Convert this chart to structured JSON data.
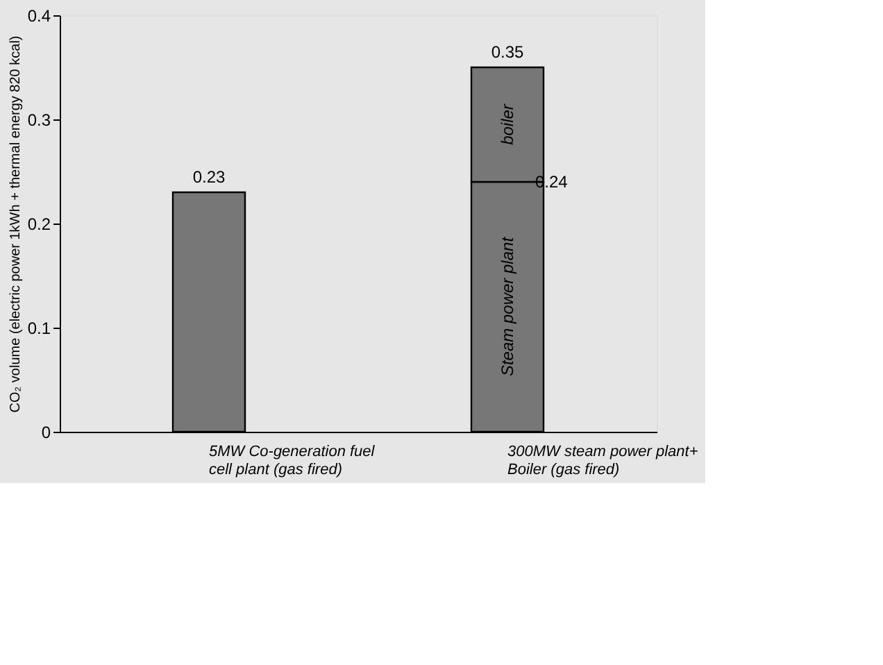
{
  "chart_data": {
    "type": "bar",
    "stacked": true,
    "ylabel": "CO₂ volume (electric power 1kWh + thermal energy 820 kcal)",
    "categories": [
      "5MW Co-generation fuel cell plant (gas fired)",
      "300MW steam power plant+ Boiler (gas fired)"
    ],
    "series": [
      {
        "color": "#777777",
        "values": [
          0.23,
          null
        ]
      },
      {
        "name": "Steam power plant",
        "color": "#777777",
        "values": [
          null,
          0.24
        ],
        "value_labels": [
          null,
          "0.24"
        ]
      },
      {
        "name": "boiler",
        "color": "#777777",
        "values": [
          null,
          0.11
        ]
      }
    ],
    "totals": [
      "0.23",
      "0.35"
    ],
    "ylim": [
      0,
      0.4
    ],
    "yticks": [
      0,
      0.1,
      0.2,
      0.3,
      0.4
    ],
    "grid": false
  }
}
